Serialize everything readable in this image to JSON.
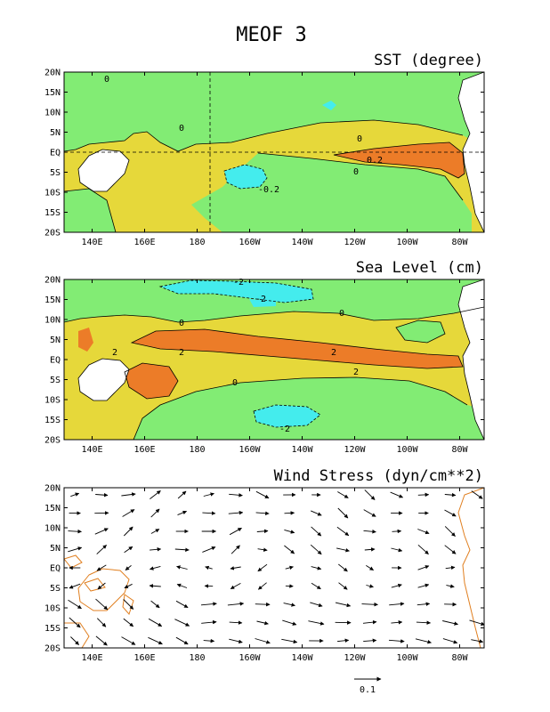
{
  "figure": {
    "title": "MEOF 3",
    "colors": {
      "positive": "#e6d83a",
      "strong_positive": "#ec7c28",
      "negative": "#82ec74",
      "strong_negative": "#44eced",
      "land": "#ffffff",
      "coast_wind_panel": "#e07f20",
      "contour": "#000000"
    }
  },
  "axes": {
    "lon_ticks": [
      "140E",
      "160E",
      "180",
      "160W",
      "140W",
      "120W",
      "100W",
      "80W"
    ],
    "lat_ticks": [
      "20N",
      "15N",
      "10N",
      "5N",
      "EQ",
      "5S",
      "10S",
      "15S",
      "20S"
    ]
  },
  "panels": [
    {
      "id": "sst",
      "title": "SST (degree)",
      "type": "contour-map",
      "contour_labels": [
        "0",
        "0",
        "0",
        "0",
        "0.2",
        "-0.2"
      ]
    },
    {
      "id": "sea-level",
      "title": "Sea Level (cm)",
      "type": "contour-map",
      "contour_labels": [
        "-2",
        "-2",
        "0",
        "0",
        "0",
        "2",
        "2",
        "2",
        "2",
        "-2"
      ]
    },
    {
      "id": "wind-stress",
      "title": "Wind Stress (dyn/cm**2)",
      "type": "vector-map",
      "reference_vector": "0.1"
    }
  ]
}
